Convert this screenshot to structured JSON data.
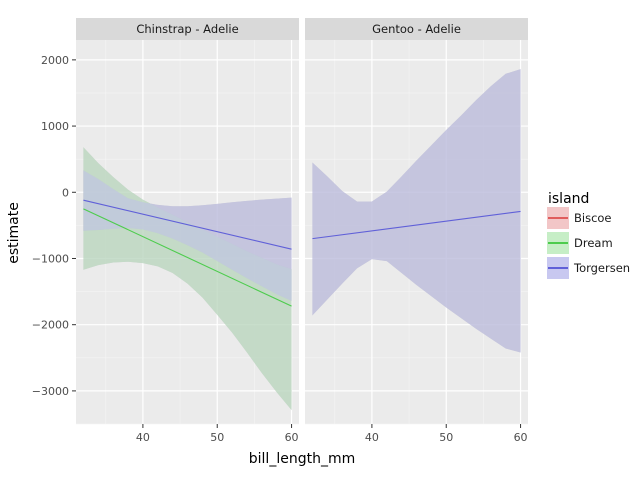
{
  "chart_data": {
    "type": "line",
    "xlabel": "bill_length_mm",
    "ylabel": "estimate",
    "ylim": [
      -3500,
      2300
    ],
    "yticks": [
      2000,
      1000,
      0,
      -1000,
      -2000,
      -3000
    ],
    "ytick_labels": [
      "2000",
      "1000",
      "0",
      "−1000",
      "−2000",
      "−3000"
    ],
    "grid": true,
    "legend": {
      "title": "island",
      "position": "right",
      "entries": [
        {
          "name": "Biscoe",
          "line": "#e05c5c",
          "fill": "#f2c6c7"
        },
        {
          "name": "Dream",
          "line": "#4dcc4d",
          "fill": "#c6eec6"
        },
        {
          "name": "Torgersen",
          "line": "#6060d8",
          "fill": "#c8c8f0"
        }
      ]
    },
    "panels": [
      {
        "strip": "Chinstrap - Adelie",
        "xlim": [
          31,
          61
        ],
        "xticks": [
          40,
          50,
          60
        ],
        "minor_xticks": [
          35,
          45,
          55
        ],
        "series": [
          {
            "name": "Dream",
            "x": [
              32,
              60
            ],
            "y": [
              -250,
              -1720
            ],
            "band": {
              "x": [
                32,
                34,
                36,
                38,
                40,
                42,
                44,
                46,
                48,
                50,
                52,
                54,
                56,
                58,
                60
              ],
              "upper": [
                680,
                440,
                230,
                40,
                -110,
                -230,
                -340,
                -450,
                -560,
                -670,
                -780,
                -890,
                -990,
                -1090,
                -1160
              ],
              "lower": [
                -1170,
                -1100,
                -1060,
                -1050,
                -1070,
                -1120,
                -1220,
                -1380,
                -1590,
                -1850,
                -2120,
                -2420,
                -2730,
                -3020,
                -3290
              ]
            }
          },
          {
            "name": "Torgersen",
            "x": [
              32,
              60
            ],
            "y": [
              -120,
              -860
            ],
            "band": {
              "x": [
                32,
                34,
                36,
                38,
                40,
                42,
                44,
                46,
                48,
                50,
                52,
                54,
                56,
                58,
                60
              ],
              "upper": [
                330,
                200,
                50,
                -90,
                -150,
                -190,
                -210,
                -210,
                -195,
                -175,
                -150,
                -130,
                -110,
                -95,
                -80
              ],
              "lower": [
                -580,
                -570,
                -550,
                -540,
                -560,
                -620,
                -700,
                -800,
                -910,
                -1040,
                -1170,
                -1300,
                -1420,
                -1540,
                -1640
              ]
            }
          }
        ]
      },
      {
        "strip": "Gentoo - Adelie",
        "xlim": [
          31,
          61
        ],
        "xticks": [
          40,
          50,
          60
        ],
        "minor_xticks": [
          35,
          45,
          55
        ],
        "series": [
          {
            "name": "Torgersen",
            "x": [
              32,
              60
            ],
            "y": [
              -700,
              -290
            ],
            "band": {
              "x": [
                32,
                34,
                36,
                38,
                40,
                42,
                44,
                46,
                48,
                50,
                52,
                54,
                56,
                58,
                60
              ],
              "upper": [
                450,
                240,
                20,
                -140,
                -140,
                10,
                240,
                480,
                710,
                940,
                1160,
                1390,
                1600,
                1790,
                1860
              ],
              "lower": [
                -1860,
                -1620,
                -1380,
                -1150,
                -1010,
                -1040,
                -1220,
                -1400,
                -1570,
                -1740,
                -1900,
                -2060,
                -2210,
                -2360,
                -2420
              ]
            }
          }
        ]
      }
    ]
  }
}
